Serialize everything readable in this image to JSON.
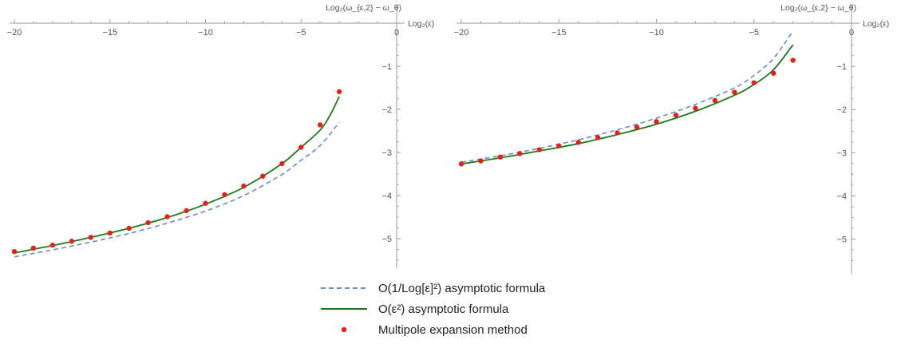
{
  "legend": {
    "items": [
      {
        "label": "O(1/Log[ε]²) asymptotic formula",
        "style": "dashed",
        "color": "#6a8cbf"
      },
      {
        "label": "O(ε²) asymptotic formula",
        "style": "solid",
        "color": "#1a7a1a"
      },
      {
        "label": "Multipole expansion method",
        "style": "dot",
        "color": "#e8201a"
      }
    ]
  },
  "chart_data": [
    {
      "type": "line",
      "xlabel": "Log₂(ε)",
      "ylabel": "Log₂(ω_{ε,2} − ω_θ)",
      "xlim": [
        -20,
        0
      ],
      "ylim": [
        -5.5,
        0
      ],
      "x_ticks": [
        -20,
        -15,
        -10,
        -5,
        0
      ],
      "y_ticks": [
        -1,
        -2,
        -3,
        -4,
        -5
      ],
      "axis_position": "x-axis-top",
      "series": [
        {
          "name": "O(1/Log[ε]²) asymptotic formula",
          "style": "dashed",
          "color": "#6a8cbf",
          "x": [
            -20,
            -18,
            -16,
            -14,
            -12,
            -10,
            -8,
            -6,
            -5,
            -4,
            -3
          ],
          "y": [
            -5.42,
            -5.26,
            -5.08,
            -4.88,
            -4.64,
            -4.36,
            -4.0,
            -3.51,
            -3.18,
            -2.84,
            -2.3
          ]
        },
        {
          "name": "O(ε²) asymptotic formula",
          "style": "solid",
          "color": "#1a7a1a",
          "x": [
            -20,
            -18,
            -16,
            -14,
            -12,
            -10,
            -8,
            -6,
            -5,
            -4,
            -3.5,
            -3
          ],
          "y": [
            -5.33,
            -5.16,
            -4.97,
            -4.76,
            -4.51,
            -4.2,
            -3.81,
            -3.26,
            -2.88,
            -2.48,
            -2.15,
            -1.7
          ]
        },
        {
          "name": "Multipole expansion method",
          "style": "dot",
          "color": "#e8201a",
          "x": [
            -20,
            -19,
            -18,
            -17,
            -16,
            -15,
            -14,
            -13,
            -12,
            -11,
            -10,
            -9,
            -8,
            -7,
            -6,
            -5,
            -4,
            -3
          ],
          "y": [
            -5.3,
            -5.22,
            -5.15,
            -5.06,
            -4.97,
            -4.87,
            -4.76,
            -4.63,
            -4.49,
            -4.35,
            -4.18,
            -3.98,
            -3.78,
            -3.55,
            -3.26,
            -2.88,
            -2.36,
            -1.59
          ]
        }
      ]
    },
    {
      "type": "line",
      "xlabel": "Log₂(ε)",
      "ylabel": "Log₂(ω_{ε,2} − ω_θ)",
      "xlim": [
        -20,
        0
      ],
      "ylim": [
        -5.5,
        0
      ],
      "x_ticks": [
        -20,
        -15,
        -10,
        -5,
        0
      ],
      "y_ticks": [
        -1,
        -2,
        -3,
        -4,
        -5
      ],
      "axis_position": "x-axis-top",
      "series": [
        {
          "name": "O(1/Log[ε]²) asymptotic formula",
          "style": "dashed",
          "color": "#6a8cbf",
          "x": [
            -20,
            -18,
            -16,
            -14,
            -12,
            -10,
            -8,
            -6,
            -5,
            -4,
            -3
          ],
          "y": [
            -3.22,
            -3.07,
            -2.9,
            -2.7,
            -2.47,
            -2.2,
            -1.88,
            -1.5,
            -1.21,
            -0.82,
            -0.18
          ]
        },
        {
          "name": "O(ε²) asymptotic formula",
          "style": "solid",
          "color": "#1a7a1a",
          "x": [
            -20,
            -18,
            -16,
            -14,
            -12,
            -10,
            -8,
            -6,
            -5,
            -4,
            -3
          ],
          "y": [
            -3.26,
            -3.12,
            -2.96,
            -2.79,
            -2.58,
            -2.34,
            -2.04,
            -1.67,
            -1.42,
            -1.08,
            -0.5
          ]
        },
        {
          "name": "Multipole expansion method",
          "style": "dot",
          "color": "#e8201a",
          "x": [
            -20,
            -19,
            -18,
            -17,
            -16,
            -15,
            -14,
            -13,
            -12,
            -11,
            -10,
            -9,
            -8,
            -7,
            -6,
            -5,
            -4,
            -3
          ],
          "y": [
            -3.26,
            -3.19,
            -3.1,
            -3.02,
            -2.93,
            -2.84,
            -2.76,
            -2.65,
            -2.54,
            -2.41,
            -2.28,
            -2.13,
            -1.97,
            -1.79,
            -1.6,
            -1.38,
            -1.16,
            -0.86
          ]
        }
      ]
    }
  ]
}
